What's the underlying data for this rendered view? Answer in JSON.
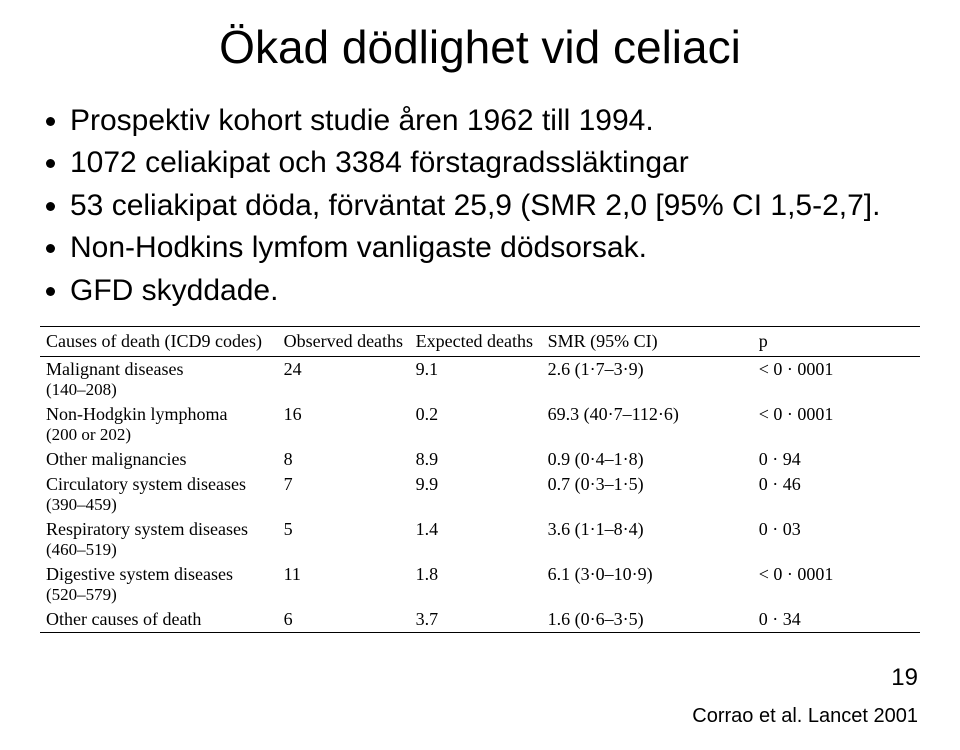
{
  "title": "Ökad dödlighet vid celiaci",
  "bullets": [
    "Prospektiv kohort studie åren 1962 till 1994.",
    "1072 celiakipat och 3384 förstagradssläktingar",
    "53 celiakipat döda, förväntat 25,9 (SMR 2,0 [95% CI 1,5-2,7].",
    "Non-Hodkins lymfom vanligaste dödsorsak.",
    "GFD skyddade."
  ],
  "table": {
    "type": "table",
    "font_family": "Times New Roman",
    "header_fontsize": 18,
    "cell_fontsize": 18,
    "sub_fontsize": 17,
    "border_color": "#000000",
    "background_color": "#ffffff",
    "columns": [
      {
        "key": "cause",
        "label": "Causes of death (ICD9 codes)",
        "width_pct": 27,
        "align": "left"
      },
      {
        "key": "observed",
        "label": "Observed deaths",
        "width_pct": 15,
        "align": "left"
      },
      {
        "key": "expected",
        "label": "Expected deaths",
        "width_pct": 15,
        "align": "left"
      },
      {
        "key": "smr",
        "label": "SMR (95% CI)",
        "width_pct": 24,
        "align": "left"
      },
      {
        "key": "p",
        "label": "p",
        "width_pct": 19,
        "align": "left"
      }
    ],
    "rows": [
      {
        "cause": "Malignant diseases (140–208)",
        "observed": "24",
        "expected": "9.1",
        "smr": "2.6 (1·7–3·9)",
        "p": "< 0 · 0001"
      },
      {
        "cause": "Non-Hodgkin lymphoma (200 or 202)",
        "observed": "16",
        "expected": "0.2",
        "smr": "69.3 (40·7–112·6)",
        "p": "< 0 · 0001"
      },
      {
        "cause": "Other malignancies",
        "observed": "8",
        "expected": "8.9",
        "smr": "0.9 (0·4–1·8)",
        "p": "0 · 94"
      },
      {
        "cause": "Circulatory system diseases (390–459)",
        "observed": "7",
        "expected": "9.9",
        "smr": "0.7 (0·3–1·5)",
        "p": "0 · 46"
      },
      {
        "cause": "Respiratory system diseases (460–519)",
        "observed": "5",
        "expected": "1.4",
        "smr": "3.6 (1·1–8·4)",
        "p": "0 · 03"
      },
      {
        "cause": "Digestive system diseases (520–579)",
        "observed": "11",
        "expected": "1.8",
        "smr": "6.1 (3·0–10·9)",
        "p": "< 0 · 0001"
      },
      {
        "cause": "Other causes of death",
        "observed": "6",
        "expected": "3.7",
        "smr": "1.6 (0·6–3·5)",
        "p": "0 · 34"
      }
    ]
  },
  "page_number": "19",
  "citation": "Corrao et al. Lancet 2001",
  "styling": {
    "title_fontsize": 46,
    "bullet_fontsize": 30,
    "title_color": "#000000",
    "text_color": "#000000",
    "background_color": "#ffffff"
  }
}
